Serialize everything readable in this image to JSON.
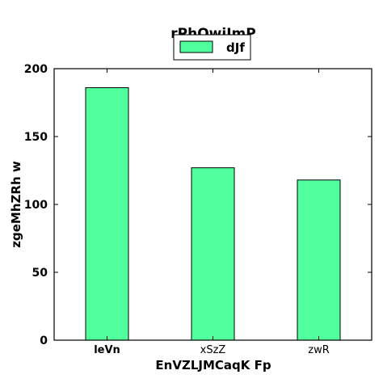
{
  "chart_data": {
    "type": "bar",
    "title": "rPhOwiJmP",
    "xlabel": "EnVZLJMCaqK Fp",
    "ylabel": "zgeMhZRh  w",
    "categories": [
      "leVn",
      "xSzZ",
      "zwR"
    ],
    "series": [
      {
        "name": "dJf",
        "values": [
          186,
          127,
          118
        ],
        "color": "#52ff9d"
      }
    ],
    "ylim": [
      0,
      200
    ],
    "yticks": [
      0,
      50,
      100,
      150,
      200
    ],
    "ytick_labels": [
      "0",
      "50",
      "100",
      "150",
      "200"
    ],
    "legend_position": "top-center",
    "grid": false
  }
}
